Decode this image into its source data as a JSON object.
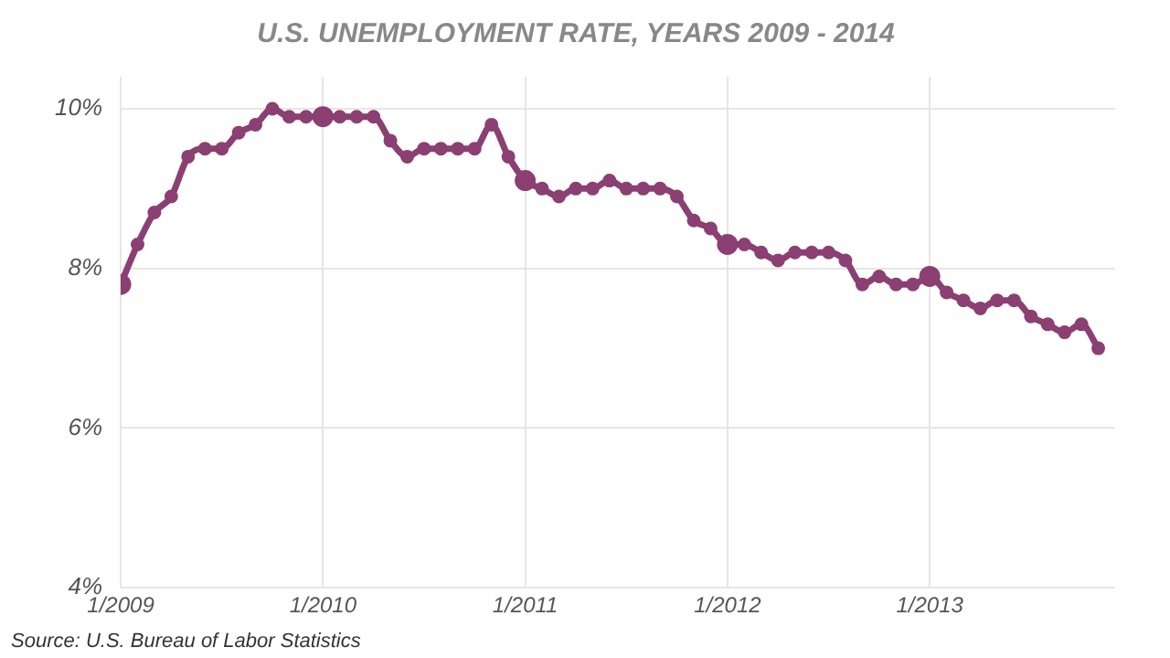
{
  "chart_data": {
    "type": "line",
    "title": "U.S. UNEMPLOYMENT RATE, YEARS 2009 - 2014",
    "x": [
      "2009-01",
      "2009-02",
      "2009-03",
      "2009-04",
      "2009-05",
      "2009-06",
      "2009-07",
      "2009-08",
      "2009-09",
      "2009-10",
      "2009-11",
      "2009-12",
      "2010-01",
      "2010-02",
      "2010-03",
      "2010-04",
      "2010-05",
      "2010-06",
      "2010-07",
      "2010-08",
      "2010-09",
      "2010-10",
      "2010-11",
      "2010-12",
      "2011-01",
      "2011-02",
      "2011-03",
      "2011-04",
      "2011-05",
      "2011-06",
      "2011-07",
      "2011-08",
      "2011-09",
      "2011-10",
      "2011-11",
      "2011-12",
      "2012-01",
      "2012-02",
      "2012-03",
      "2012-04",
      "2012-05",
      "2012-06",
      "2012-07",
      "2012-08",
      "2012-09",
      "2012-10",
      "2012-11",
      "2012-12",
      "2013-01",
      "2013-02",
      "2013-03",
      "2013-04",
      "2013-05",
      "2013-06",
      "2013-07",
      "2013-08",
      "2013-09",
      "2013-10",
      "2013-11"
    ],
    "series": [
      {
        "color": "#8b3f72",
        "values": [
          7.8,
          8.3,
          8.7,
          8.9,
          9.4,
          9.5,
          9.5,
          9.7,
          9.8,
          10.0,
          9.9,
          9.9,
          9.9,
          9.9,
          9.9,
          9.9,
          9.6,
          9.4,
          9.5,
          9.5,
          9.5,
          9.5,
          9.8,
          9.4,
          9.1,
          9.0,
          8.9,
          9.0,
          9.0,
          9.1,
          9.0,
          9.0,
          9.0,
          8.9,
          8.6,
          8.5,
          8.3,
          8.3,
          8.2,
          8.1,
          8.2,
          8.2,
          8.2,
          8.1,
          7.8,
          7.9,
          7.8,
          7.8,
          7.9,
          7.7,
          7.6,
          7.5,
          7.6,
          7.6,
          7.4,
          7.3,
          7.2,
          7.3,
          7.0
        ]
      }
    ],
    "xlim": [
      "2009-01",
      "2013-12"
    ],
    "xticks": [
      {
        "value": "2009-01",
        "label": "1/2009"
      },
      {
        "value": "2010-01",
        "label": "1/2010"
      },
      {
        "value": "2011-01",
        "label": "1/2011"
      },
      {
        "value": "2012-01",
        "label": "1/2012"
      },
      {
        "value": "2013-01",
        "label": "1/2013"
      }
    ],
    "ylim": [
      4,
      10.4
    ],
    "yticks": [
      {
        "value": 4,
        "label": "4%"
      },
      {
        "value": 6,
        "label": "6%"
      },
      {
        "value": 8,
        "label": "8%"
      },
      {
        "value": 10,
        "label": "10%"
      }
    ],
    "grid": true,
    "marker": "circle",
    "line_style": "solid",
    "annotations": [
      "Source: U.S. Bureau of Labor Statistics"
    ]
  }
}
